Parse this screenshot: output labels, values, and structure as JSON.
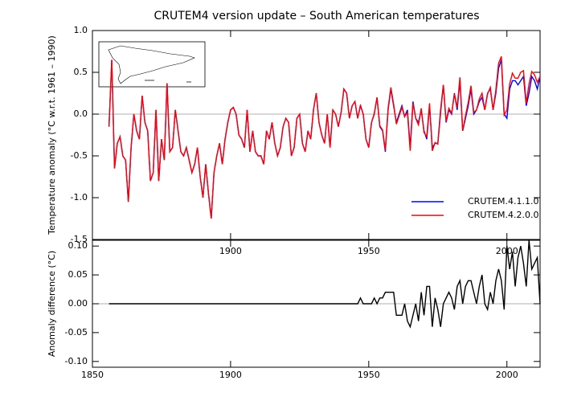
{
  "chart_data": [
    {
      "type": "line",
      "title": "CRUTEM4 version update – South American temperatures",
      "y_label": "Temperature anomaly (°C w.r.t. 1961 – 1990)",
      "legend": "lower right",
      "xlim": [
        1850,
        2012
      ],
      "xticks": [
        1900,
        1950,
        2000
      ],
      "ylim": [
        -1.5,
        1.0
      ],
      "yticks": [
        {
          "value": 1.0,
          "label": "1.0"
        },
        0.5,
        {
          "value": 0.0,
          "label": "0.0"
        },
        -0.5,
        {
          "value": -1.0,
          "label": "-1.0"
        },
        -1.5
      ],
      "x": [
        1856,
        1857,
        1858,
        1859,
        1860,
        1861,
        1862,
        1863,
        1864,
        1865,
        1866,
        1867,
        1868,
        1869,
        1870,
        1871,
        1872,
        1873,
        1874,
        1875,
        1876,
        1877,
        1878,
        1879,
        1880,
        1881,
        1882,
        1883,
        1884,
        1885,
        1886,
        1887,
        1888,
        1889,
        1890,
        1891,
        1892,
        1893,
        1894,
        1895,
        1896,
        1897,
        1898,
        1899,
        1900,
        1901,
        1902,
        1903,
        1904,
        1905,
        1906,
        1907,
        1908,
        1909,
        1910,
        1911,
        1912,
        1913,
        1914,
        1915,
        1916,
        1917,
        1918,
        1919,
        1920,
        1921,
        1922,
        1923,
        1924,
        1925,
        1926,
        1927,
        1928,
        1929,
        1930,
        1931,
        1932,
        1933,
        1934,
        1935,
        1936,
        1937,
        1938,
        1939,
        1940,
        1941,
        1942,
        1943,
        1944,
        1945,
        1946,
        1947,
        1948,
        1949,
        1950,
        1951,
        1952,
        1953,
        1954,
        1955,
        1956,
        1957,
        1958,
        1959,
        1960,
        1961,
        1962,
        1963,
        1964,
        1965,
        1966,
        1967,
        1968,
        1969,
        1970,
        1971,
        1972,
        1973,
        1974,
        1975,
        1976,
        1977,
        1978,
        1979,
        1980,
        1981,
        1982,
        1983,
        1984,
        1985,
        1986,
        1987,
        1988,
        1989,
        1990,
        1991,
        1992,
        1993,
        1994,
        1995,
        1996,
        1997,
        1998,
        1999,
        2000,
        2001,
        2002,
        2003,
        2004,
        2005,
        2006,
        2007,
        2008,
        2009,
        2010,
        2011,
        2012
      ],
      "series": [
        {
          "name": "CRUTEM.4.1.1.0",
          "color": "#0000ff",
          "values": [
            -0.15,
            0.65,
            -0.65,
            -0.35,
            -0.27,
            -0.5,
            -0.55,
            -1.05,
            -0.4,
            0.0,
            -0.2,
            -0.3,
            0.22,
            -0.1,
            -0.2,
            -0.8,
            -0.7,
            0.05,
            -0.8,
            -0.3,
            -0.55,
            0.37,
            -0.45,
            -0.4,
            0.05,
            -0.2,
            -0.45,
            -0.5,
            -0.4,
            -0.55,
            -0.7,
            -0.6,
            -0.4,
            -0.75,
            -1.0,
            -0.6,
            -0.95,
            -1.25,
            -0.7,
            -0.5,
            -0.35,
            -0.6,
            -0.3,
            -0.1,
            0.05,
            0.08,
            0.0,
            -0.25,
            -0.3,
            -0.4,
            0.05,
            -0.45,
            -0.2,
            -0.45,
            -0.5,
            -0.5,
            -0.6,
            -0.2,
            -0.3,
            -0.1,
            -0.35,
            -0.5,
            -0.4,
            -0.15,
            -0.05,
            -0.1,
            -0.5,
            -0.4,
            -0.05,
            0.0,
            -0.35,
            -0.45,
            -0.2,
            -0.3,
            0.05,
            0.25,
            -0.1,
            -0.25,
            -0.35,
            0.0,
            -0.4,
            0.05,
            0.0,
            -0.15,
            0.02,
            0.3,
            0.25,
            -0.05,
            0.1,
            0.15,
            -0.05,
            0.1,
            0.0,
            -0.3,
            -0.4,
            -0.1,
            0.0,
            0.2,
            -0.15,
            -0.2,
            -0.45,
            0.05,
            0.3,
            0.1,
            -0.1,
            0.0,
            0.1,
            -0.03,
            0.05,
            -0.4,
            0.15,
            -0.05,
            -0.1,
            0.05,
            -0.2,
            -0.3,
            0.1,
            -0.4,
            -0.35,
            -0.35,
            0.05,
            0.35,
            -0.1,
            0.05,
            0.0,
            0.25,
            0.05,
            0.4,
            -0.2,
            -0.05,
            0.1,
            0.3,
            0.0,
            0.05,
            0.15,
            0.2,
            0.05,
            0.25,
            0.3,
            0.05,
            0.25,
            0.55,
            0.65,
            0.0,
            -0.05,
            0.3,
            0.4,
            0.4,
            0.35,
            0.4,
            0.45,
            0.1,
            0.25,
            0.45,
            0.4,
            0.3,
            0.45
          ]
        },
        {
          "name": "CRUTEM.4.2.0.0",
          "color": "#ff0000",
          "values": [
            -0.15,
            0.65,
            -0.65,
            -0.35,
            -0.27,
            -0.5,
            -0.55,
            -1.05,
            -0.4,
            0.0,
            -0.2,
            -0.3,
            0.22,
            -0.1,
            -0.2,
            -0.8,
            -0.7,
            0.05,
            -0.8,
            -0.3,
            -0.55,
            0.37,
            -0.45,
            -0.4,
            0.05,
            -0.2,
            -0.45,
            -0.5,
            -0.4,
            -0.55,
            -0.7,
            -0.6,
            -0.4,
            -0.75,
            -1.0,
            -0.6,
            -0.95,
            -1.25,
            -0.7,
            -0.5,
            -0.35,
            -0.6,
            -0.3,
            -0.1,
            0.05,
            0.08,
            0.0,
            -0.25,
            -0.3,
            -0.4,
            0.05,
            -0.45,
            -0.2,
            -0.45,
            -0.5,
            -0.5,
            -0.6,
            -0.2,
            -0.3,
            -0.1,
            -0.35,
            -0.5,
            -0.4,
            -0.15,
            -0.05,
            -0.1,
            -0.5,
            -0.4,
            -0.05,
            0.0,
            -0.35,
            -0.45,
            -0.2,
            -0.3,
            0.05,
            0.25,
            -0.1,
            -0.25,
            -0.35,
            0.0,
            -0.4,
            0.05,
            0.0,
            -0.15,
            0.02,
            0.3,
            0.25,
            -0.05,
            0.1,
            0.15,
            -0.05,
            0.11,
            0.0,
            -0.3,
            -0.4,
            -0.1,
            0.01,
            0.2,
            -0.14,
            -0.19,
            -0.43,
            0.07,
            0.32,
            0.12,
            -0.12,
            -0.02,
            0.08,
            -0.03,
            0.02,
            -0.44,
            0.13,
            -0.05,
            -0.13,
            0.07,
            -0.22,
            -0.27,
            0.13,
            -0.44,
            -0.34,
            -0.36,
            0.01,
            0.35,
            -0.09,
            0.07,
            0.01,
            0.24,
            0.08,
            0.44,
            -0.2,
            -0.02,
            0.14,
            0.34,
            0.02,
            0.05,
            0.18,
            0.25,
            0.05,
            0.24,
            0.32,
            0.05,
            0.29,
            0.61,
            0.69,
            -0.01,
            0.05,
            0.36,
            0.49,
            0.43,
            0.43,
            0.5,
            0.52,
            0.13,
            0.36,
            0.51,
            0.47,
            0.38,
            0.45
          ]
        }
      ]
    },
    {
      "type": "line",
      "y_label": "Anomaly difference (°C)",
      "xlim": [
        1850,
        2012
      ],
      "xticks": [
        1850,
        1900,
        1950,
        2000
      ],
      "ylim": [
        -0.11,
        0.11
      ],
      "yticks": [
        {
          "value": 0.1,
          "label": "0.10"
        },
        {
          "value": 0.05,
          "label": "0.05"
        },
        {
          "value": 0.0,
          "label": "0.00"
        },
        {
          "value": -0.05,
          "label": "-0.05"
        },
        {
          "value": -0.1,
          "label": "-0.10"
        }
      ],
      "x": [
        1856,
        1857,
        1858,
        1859,
        1860,
        1861,
        1862,
        1863,
        1864,
        1865,
        1866,
        1867,
        1868,
        1869,
        1870,
        1871,
        1872,
        1873,
        1874,
        1875,
        1876,
        1877,
        1878,
        1879,
        1880,
        1881,
        1882,
        1883,
        1884,
        1885,
        1886,
        1887,
        1888,
        1889,
        1890,
        1891,
        1892,
        1893,
        1894,
        1895,
        1896,
        1897,
        1898,
        1899,
        1900,
        1901,
        1902,
        1903,
        1904,
        1905,
        1906,
        1907,
        1908,
        1909,
        1910,
        1911,
        1912,
        1913,
        1914,
        1915,
        1916,
        1917,
        1918,
        1919,
        1920,
        1921,
        1922,
        1923,
        1924,
        1925,
        1926,
        1927,
        1928,
        1929,
        1930,
        1931,
        1932,
        1933,
        1934,
        1935,
        1936,
        1937,
        1938,
        1939,
        1940,
        1941,
        1942,
        1943,
        1944,
        1945,
        1946,
        1947,
        1948,
        1949,
        1950,
        1951,
        1952,
        1953,
        1954,
        1955,
        1956,
        1957,
        1958,
        1959,
        1960,
        1961,
        1962,
        1963,
        1964,
        1965,
        1966,
        1967,
        1968,
        1969,
        1970,
        1971,
        1972,
        1973,
        1974,
        1975,
        1976,
        1977,
        1978,
        1979,
        1980,
        1981,
        1982,
        1983,
        1984,
        1985,
        1986,
        1987,
        1988,
        1989,
        1990,
        1991,
        1992,
        1993,
        1994,
        1995,
        1996,
        1997,
        1998,
        1999,
        2000,
        2001,
        2002,
        2003,
        2004,
        2005,
        2006,
        2007,
        2008,
        2009,
        2010,
        2011,
        2012
      ],
      "color": "#000000",
      "values": [
        0,
        0,
        0,
        0,
        0,
        0,
        0,
        0,
        0,
        0,
        0,
        0,
        0,
        0,
        0,
        0,
        0,
        0,
        0,
        0,
        0,
        0,
        0,
        0,
        0,
        0,
        0,
        0,
        0,
        0,
        0,
        0,
        0,
        0,
        0,
        0,
        0,
        0,
        0,
        0,
        0,
        0,
        0,
        0,
        0,
        0,
        0,
        0,
        0,
        0,
        0,
        0,
        0,
        0,
        0,
        0,
        0,
        0,
        0,
        0,
        0,
        0,
        0,
        0,
        0,
        0,
        0,
        0,
        0,
        0,
        0,
        0,
        0,
        0,
        0,
        0,
        0,
        0,
        0,
        0,
        0,
        0,
        0,
        0,
        0,
        0,
        0,
        0,
        0,
        0,
        0,
        0.01,
        0.0,
        0.0,
        0.0,
        0.0,
        0.01,
        0.0,
        0.01,
        0.01,
        0.02,
        0.02,
        0.02,
        0.02,
        -0.02,
        -0.02,
        -0.02,
        0.0,
        -0.03,
        -0.04,
        -0.02,
        0.0,
        -0.03,
        0.02,
        -0.02,
        0.03,
        0.03,
        -0.04,
        0.01,
        -0.01,
        -0.04,
        0.0,
        0.01,
        0.02,
        0.01,
        -0.01,
        0.03,
        0.04,
        0.0,
        0.03,
        0.04,
        0.04,
        0.02,
        0.0,
        0.03,
        0.05,
        0.0,
        -0.01,
        0.02,
        0.0,
        0.04,
        0.06,
        0.04,
        -0.01,
        0.1,
        0.06,
        0.09,
        0.03,
        0.08,
        0.1,
        0.07,
        0.03,
        0.11,
        0.06,
        0.07,
        0.08,
        0.0
      ]
    }
  ]
}
